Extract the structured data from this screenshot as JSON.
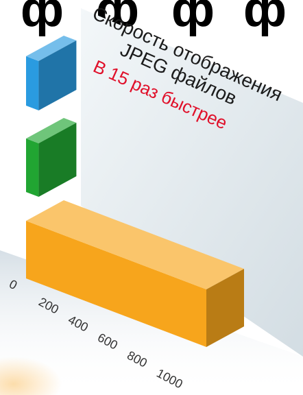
{
  "chart_data": {
    "type": "bar",
    "orientation": "horizontal",
    "title": "Скорость отображения JPEG файлов",
    "title_lines": [
      "Скорость отображения",
      "JPEG файлов"
    ],
    "annotation": "В 15 раз быстрее",
    "categories": [
      "",
      "",
      ""
    ],
    "values": [
      70,
      70,
      1000
    ],
    "colors": [
      "#2a9be0",
      "#21a532",
      "#f7a51c"
    ],
    "xticks": [
      0,
      200,
      400,
      600,
      800,
      1000
    ],
    "xlim": [
      0,
      1000
    ],
    "grid": false
  },
  "top_strip_text": "ф ф ф ф"
}
